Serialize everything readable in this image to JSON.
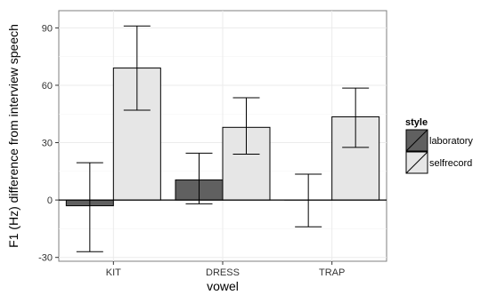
{
  "chart_data": {
    "type": "bar",
    "categories": [
      "KIT",
      "DRESS",
      "TRAP"
    ],
    "series": [
      {
        "name": "laboratory",
        "color": "#606060",
        "values": [
          -3,
          10.5,
          0
        ],
        "error_low": [
          -27,
          -2,
          -14
        ],
        "error_high": [
          19.5,
          24.5,
          13.5
        ]
      },
      {
        "name": "selfrecord",
        "color": "#e6e6e6",
        "values": [
          69,
          38,
          43.5
        ],
        "error_low": [
          47,
          24,
          27.5
        ],
        "error_high": [
          91,
          53.5,
          58.5
        ]
      }
    ],
    "xlabel": "vowel",
    "ylabel": "F1 (Hz) difference from interview speech",
    "ylim": [
      -32,
      99
    ],
    "yticks": [
      -30,
      0,
      30,
      60,
      90
    ],
    "grid": true,
    "legend": {
      "title": "style",
      "position": "right"
    }
  }
}
